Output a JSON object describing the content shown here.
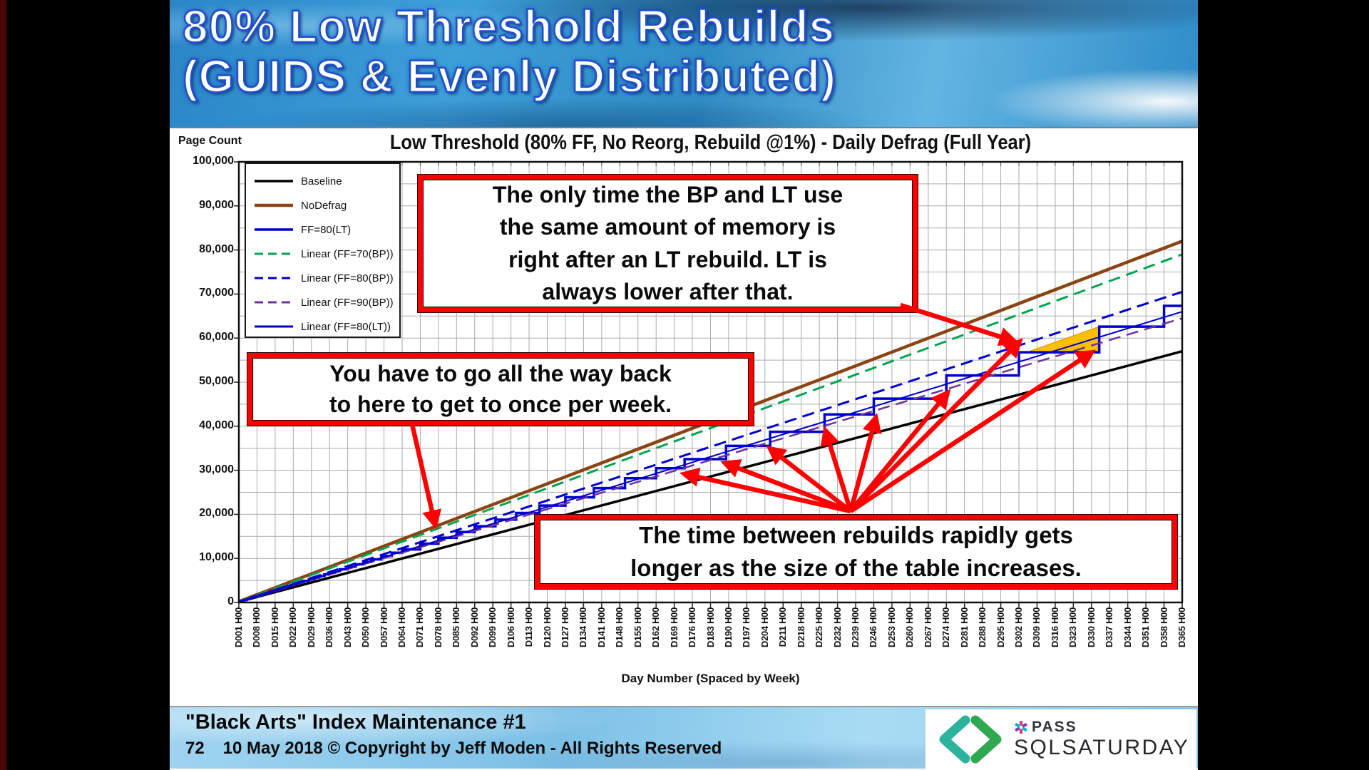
{
  "banner": {
    "title_line1": "80% Low Threshold Rebuilds",
    "title_line2": "(GUIDS & Evenly Distributed)"
  },
  "callouts": {
    "box1": "The only time the BP and LT use\nthe same amount of memory is\nright after an LT rebuild.  LT is\nalways lower after that.",
    "box2": "You have to go all the way back\nto here to get to once per week.",
    "box3": "The time between rebuilds rapidly gets\nlonger as the size of the table increases."
  },
  "footer": {
    "title": "\"Black Arts\" Index Maintenance #1",
    "page_number": "72",
    "copyright": "10 May 2018 © Copyright by Jeff Moden - All Rights Reserved",
    "logo": {
      "pass": "PASS",
      "sqlsaturday": "SQLSATURDAY"
    }
  },
  "chart_data": {
    "type": "line",
    "title": "Low Threshold (80% FF, No Reorg, Rebuild @1%) - Daily Defrag (Full Year)",
    "ylabel": "Page Count",
    "xlabel": "Day Number (Spaced by Week)",
    "xlim": [
      1,
      365
    ],
    "ylim": [
      0,
      100000
    ],
    "y_major_step": 10000,
    "y_minor_step": 5000,
    "x_grid_step_days": 7,
    "grid": true,
    "legend_position": "upper-left",
    "x_tick_labels": [
      "D001 H00",
      "D008 H00",
      "D015 H00",
      "D022 H00",
      "D029 H00",
      "D036 H00",
      "D043 H00",
      "D050 H00",
      "D057 H00",
      "D064 H00",
      "D071 H00",
      "D078 H00",
      "D085 H00",
      "D092 H00",
      "D099 H00",
      "D106 H00",
      "D113 H00",
      "D120 H00",
      "D127 H00",
      "D134 H00",
      "D141 H00",
      "D148 H00",
      "D155 H00",
      "D162 H00",
      "D169 H00",
      "D176 H00",
      "D183 H00",
      "D190 H00",
      "D197 H00",
      "D204 H00",
      "D211 H00",
      "D218 H00",
      "D225 H00",
      "D232 H00",
      "D239 H00",
      "D246 H00",
      "D253 H00",
      "D260 H00",
      "D267 H00",
      "D274 H00",
      "D281 H00",
      "D288 H00",
      "D295 H00",
      "D302 H00",
      "D309 H00",
      "D316 H00",
      "D323 H00",
      "D330 H00",
      "D337 H00",
      "D344 H00",
      "D351 H00",
      "D358 H00",
      "D365 H00"
    ],
    "series": [
      {
        "name": "Baseline",
        "color": "#000000",
        "dash": "solid",
        "width": 3.5,
        "x": [
          1,
          365
        ],
        "y": [
          150,
          57000
        ]
      },
      {
        "name": "NoDefrag",
        "color": "#8b4513",
        "dash": "solid",
        "width": 4.5,
        "x": [
          1,
          365
        ],
        "y": [
          200,
          82000
        ]
      },
      {
        "name": "FF=80(LT)",
        "color": "#0000cc",
        "dash": "solid",
        "width": 3.5,
        "step": true,
        "jump_slope_per_day": 188,
        "rebuild_days": [
          1,
          2,
          3,
          4,
          5,
          6,
          7,
          8,
          9,
          10,
          11,
          12,
          13,
          14,
          15,
          16,
          17,
          18,
          19,
          20,
          21,
          22,
          23,
          24,
          25,
          26,
          28,
          30,
          32,
          34,
          36,
          38,
          40,
          43,
          46,
          49,
          52,
          56,
          60,
          64,
          71,
          78,
          85,
          92,
          100,
          108,
          117,
          127,
          138,
          150,
          162,
          173,
          189,
          206,
          227,
          246,
          274,
          302,
          333,
          358
        ]
      },
      {
        "name": "Linear (FF=70(BP))",
        "color": "#00a550",
        "dash": "dashed",
        "width": 3,
        "x": [
          1,
          365
        ],
        "y": [
          150,
          79000
        ]
      },
      {
        "name": "Linear (FF=80(BP))",
        "color": "#0000cc",
        "dash": "dashed",
        "width": 3,
        "x": [
          1,
          365
        ],
        "y": [
          150,
          70500
        ]
      },
      {
        "name": "Linear (FF=90(BP))",
        "color": "#7030a0",
        "dash": "dashed",
        "width": 2.5,
        "x": [
          1,
          365
        ],
        "y": [
          150,
          64500
        ]
      },
      {
        "name": "Linear (FF=80(LT))",
        "color": "#0000cc",
        "dash": "solid",
        "width": 2,
        "x": [
          1,
          365
        ],
        "y": [
          150,
          66000
        ]
      }
    ],
    "highlight_triangle": {
      "color": "#ffc000",
      "edge_color": "#d28e00",
      "vertices_day_value": [
        [
          305,
          56776
        ],
        [
          333,
          56776
        ],
        [
          333,
          62604
        ]
      ]
    },
    "annotations": {
      "arrow_color": "#fe0000",
      "arrows": [
        {
          "from": [
            955,
            537
          ],
          "to": [
            723,
            485
          ]
        },
        {
          "from": [
            955,
            537
          ],
          "to": [
            780,
            470
          ]
        },
        {
          "from": [
            955,
            537
          ],
          "to": [
            843,
            450
          ]
        },
        {
          "from": [
            955,
            537
          ],
          "to": [
            920,
            425
          ]
        },
        {
          "from": [
            955,
            537
          ],
          "to": [
            990,
            407
          ]
        },
        {
          "from": [
            955,
            537
          ],
          "to": [
            1090,
            372
          ]
        },
        {
          "from": [
            955,
            537
          ],
          "to": [
            1191,
            300
          ]
        },
        {
          "from": [
            955,
            537
          ],
          "to": [
            1292,
            315
          ]
        },
        {
          "from": [
            1025,
            248
          ],
          "to": [
            1183,
            298
          ]
        },
        {
          "from": [
            340,
            415
          ],
          "to": [
            372,
            555
          ]
        }
      ]
    }
  }
}
